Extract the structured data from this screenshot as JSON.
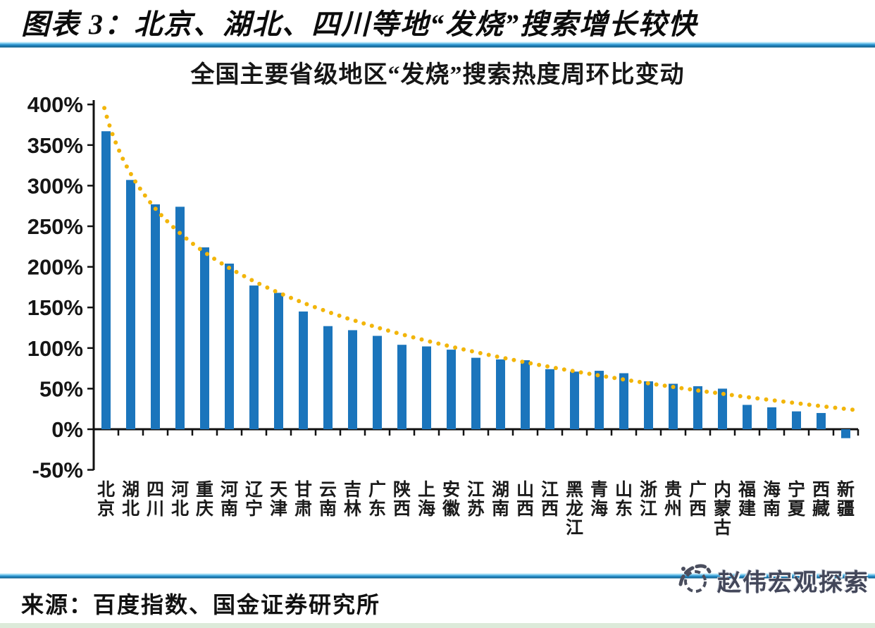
{
  "header": {
    "title": "图表 3：北京、湖北、四川等地“发烧”搜索增长较快"
  },
  "chart_data": {
    "type": "bar",
    "title": "全国主要省级地区“发烧”搜索热度周环比变动",
    "categories": [
      "北京",
      "湖北",
      "四川",
      "河北",
      "重庆",
      "河南",
      "辽宁",
      "天津",
      "甘肃",
      "云南",
      "吉林",
      "广东",
      "陕西",
      "上海",
      "安徽",
      "江苏",
      "湖南",
      "山西",
      "江西",
      "黑龙江",
      "青海",
      "山东",
      "浙江",
      "贵州",
      "广西",
      "内蒙古",
      "福建",
      "海南",
      "宁夏",
      "西藏",
      "新疆"
    ],
    "values": [
      367,
      307,
      277,
      274,
      224,
      204,
      177,
      168,
      145,
      127,
      122,
      115,
      104,
      102,
      98,
      88,
      86,
      85,
      74,
      71,
      72,
      69,
      59,
      56,
      53,
      50,
      30,
      27,
      22,
      20,
      -11
    ],
    "value_unit": "%",
    "y_ticks": [
      400,
      350,
      300,
      250,
      200,
      150,
      100,
      50,
      0,
      -50
    ],
    "y_unit": "%",
    "ylim": [
      -50,
      400
    ],
    "grid": false,
    "legend": "none",
    "bar_color": "#1B75BC",
    "axis_color": "#111111",
    "trendline": {
      "type": "log",
      "formula": "y = 388 - 105.7*ln(x), x = rank 1..31",
      "a": 388,
      "b": -105.7,
      "style": "dotted",
      "color": "#F2B50A"
    }
  },
  "footer": {
    "source": "来源：百度指数、国金证券研究所",
    "watermark": "赵伟宏观探索"
  },
  "colors": {
    "bar": "#1B75BC",
    "trend_dots": "#F2B50A",
    "divider_blue": "#2A93CF",
    "axis": "#111111"
  }
}
